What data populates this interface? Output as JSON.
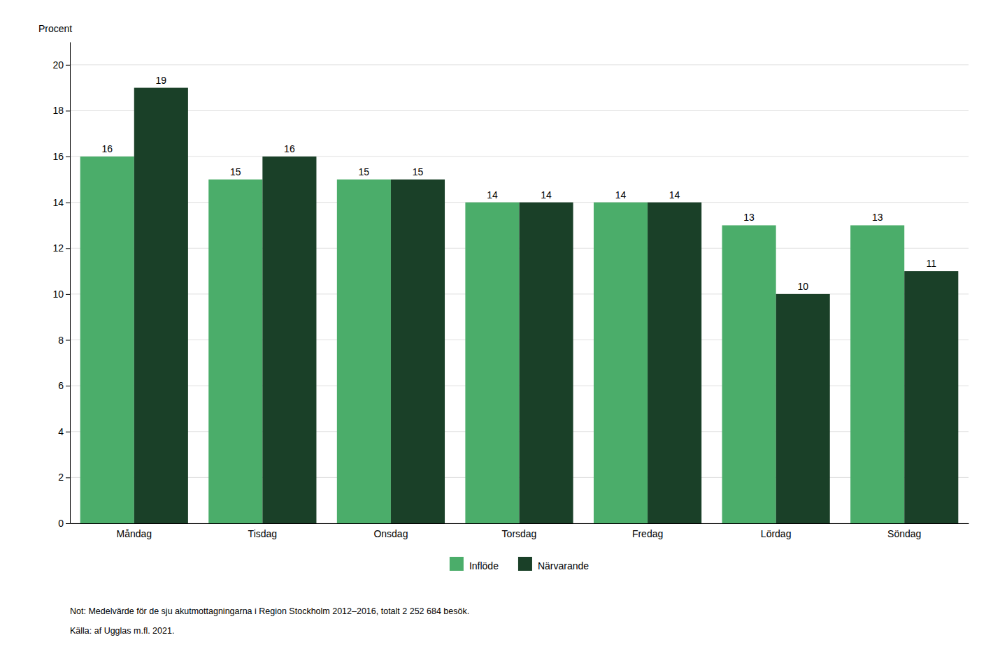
{
  "chart_data": {
    "type": "bar",
    "ylabel": "Procent",
    "categories": [
      "Måndag",
      "Tisdag",
      "Onsdag",
      "Torsdag",
      "Fredag",
      "Lördag",
      "Söndag"
    ],
    "series": [
      {
        "name": "Inflöde",
        "color": "#4BAD6A",
        "values": [
          16,
          15,
          15,
          14,
          14,
          13,
          13
        ]
      },
      {
        "name": "Närvarande",
        "color": "#1A4028",
        "values": [
          19,
          16,
          15,
          14,
          14,
          10,
          11
        ]
      }
    ],
    "ylim": [
      0,
      21
    ],
    "yticks": [
      0,
      2,
      4,
      6,
      8,
      10,
      12,
      14,
      16,
      18,
      20
    ],
    "grid": true,
    "legend": "bottom",
    "data_labels": true,
    "annotations": [
      "Not: Medelvärde för de sju akutmottagningarna i Region Stockholm 2012–2016, totalt 2 252 684 besök.",
      "Källa: af Ugglas m.fl. 2021."
    ]
  }
}
